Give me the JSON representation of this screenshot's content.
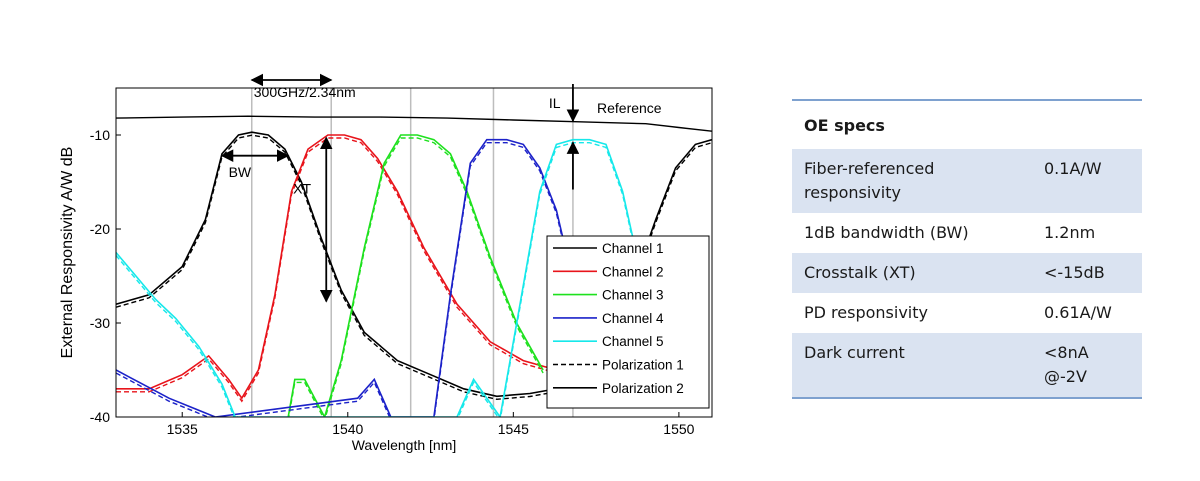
{
  "chart_data": {
    "type": "line",
    "xlabel": "Wavelength [nm]",
    "ylabel": "External Responsivity A/W dB",
    "xlim": [
      1533,
      1551
    ],
    "ylim": [
      -40,
      -5
    ],
    "xticks": [
      1535,
      1540,
      1545,
      1550
    ],
    "yticks": [
      -10,
      -20,
      -30,
      -40
    ],
    "grid": false,
    "legend_position": "bottom-right",
    "vertical_markers": [
      1537.1,
      1539.5,
      1541.9,
      1544.4,
      1546.8
    ],
    "annotations": {
      "spacing": "300GHz/2.34nm",
      "bandwidth": "BW",
      "crosstalk": "XT",
      "insertion_loss": "IL",
      "reference": "Reference"
    },
    "series": [
      {
        "name": "Channel 1",
        "color": "#000000",
        "x": [
          1533,
          1534,
          1535,
          1535.7,
          1536.2,
          1536.7,
          1537.1,
          1537.6,
          1538.1,
          1538.6,
          1539.2,
          1539.8,
          1540.5,
          1541.5,
          1542.5,
          1543.5,
          1544.5,
          1545.5,
          1546.3,
          1547.5,
          1548.5,
          1549.3,
          1549.9,
          1550.5,
          1551
        ],
        "y": [
          -28,
          -27,
          -24,
          -19,
          -12,
          -10,
          -9.7,
          -10,
          -11.5,
          -15,
          -21,
          -26.5,
          -31,
          -34,
          -35.5,
          -37,
          -37.8,
          -37.5,
          -37,
          -34,
          -27,
          -19,
          -13.5,
          -11,
          -10.5
        ]
      },
      {
        "name": "Channel 2",
        "color": "#e8141b",
        "x": [
          1533,
          1534,
          1535,
          1535.8,
          1536.4,
          1536.8,
          1537.3,
          1537.8,
          1538.3,
          1538.8,
          1539.4,
          1539.9,
          1540.4,
          1540.9,
          1541.5,
          1542.3,
          1543.3,
          1544.3,
          1545.3,
          1546.3
        ],
        "y": [
          -37,
          -37,
          -35.5,
          -33.5,
          -36,
          -38,
          -35,
          -27,
          -16,
          -11.5,
          -10,
          -10,
          -10.5,
          -12.5,
          -16,
          -22,
          -28,
          -32,
          -34,
          -35
        ]
      },
      {
        "name": "Channel 3",
        "color": "#1ee11e",
        "x": [
          1538.2,
          1538.4,
          1538.7,
          1539.3,
          1539.8,
          1540.5,
          1541.1,
          1541.6,
          1542.1,
          1542.6,
          1543.1,
          1543.6,
          1544.3,
          1545.1,
          1545.9
        ],
        "y": [
          -40,
          -36,
          -36,
          -40,
          -34,
          -22,
          -13,
          -10,
          -10,
          -10.5,
          -12,
          -16,
          -23,
          -30,
          -35
        ]
      },
      {
        "name": "Channel 4",
        "color": "#1c22c9",
        "x": [
          1533,
          1533.8,
          1534.6,
          1535.3,
          1536,
          1540.3,
          1540.8,
          1541.3,
          1542.6,
          1543.1,
          1543.7,
          1544.2,
          1544.8,
          1545.3,
          1545.8,
          1546.3,
          1546.9,
          1547.5
        ],
        "y": [
          -35,
          -36.5,
          -38,
          -39,
          -40,
          -38,
          -36,
          -40,
          -40,
          -27,
          -13,
          -10.5,
          -10.5,
          -11,
          -13.5,
          -18,
          -27,
          -36
        ]
      },
      {
        "name": "Channel 5",
        "color": "#16e8ea",
        "x": [
          1533,
          1533.6,
          1534.2,
          1534.8,
          1535.5,
          1536.2,
          1536.6,
          1543.3,
          1543.8,
          1544.6,
          1545.2,
          1545.8,
          1546.3,
          1546.8,
          1547.3,
          1547.8,
          1548.3,
          1548.8
        ],
        "y": [
          -22.5,
          -25,
          -27.5,
          -29.5,
          -32.5,
          -36.5,
          -40,
          -40,
          -36,
          -40,
          -28,
          -16,
          -11,
          -10.5,
          -10.5,
          -11,
          -16,
          -24
        ]
      }
    ],
    "reference": {
      "name": "Reference",
      "color": "#000000",
      "x": [
        1533,
        1535,
        1537,
        1539,
        1541,
        1543,
        1545,
        1547,
        1549,
        1550,
        1551
      ],
      "y": [
        -8.2,
        -8.1,
        -8.0,
        -8.1,
        -8.1,
        -8.2,
        -8.4,
        -8.6,
        -8.8,
        -9.2,
        -9.6
      ]
    },
    "legend": [
      {
        "label": "Channel 1",
        "color": "#000000",
        "style": "solid"
      },
      {
        "label": "Channel 2",
        "color": "#e8141b",
        "style": "solid"
      },
      {
        "label": "Channel 3",
        "color": "#1ee11e",
        "style": "solid"
      },
      {
        "label": "Channel 4",
        "color": "#1c22c9",
        "style": "solid"
      },
      {
        "label": "Channel 5",
        "color": "#16e8ea",
        "style": "solid"
      },
      {
        "label": "Polarization 1",
        "color": "#000000",
        "style": "dashed"
      },
      {
        "label": "Polarization 2",
        "color": "#000000",
        "style": "solid"
      }
    ]
  },
  "specs": {
    "header": "OE specs",
    "rows": [
      {
        "name": "Fiber-referenced responsivity",
        "value": "0.1A/W"
      },
      {
        "name": "1dB bandwidth (BW)",
        "value": "1.2nm"
      },
      {
        "name": "Crosstalk (XT)",
        "value": "<-15dB"
      },
      {
        "name": "PD responsivity",
        "value": "0.61A/W"
      },
      {
        "name": "Dark current",
        "value": "<8nA @-2V"
      }
    ]
  }
}
